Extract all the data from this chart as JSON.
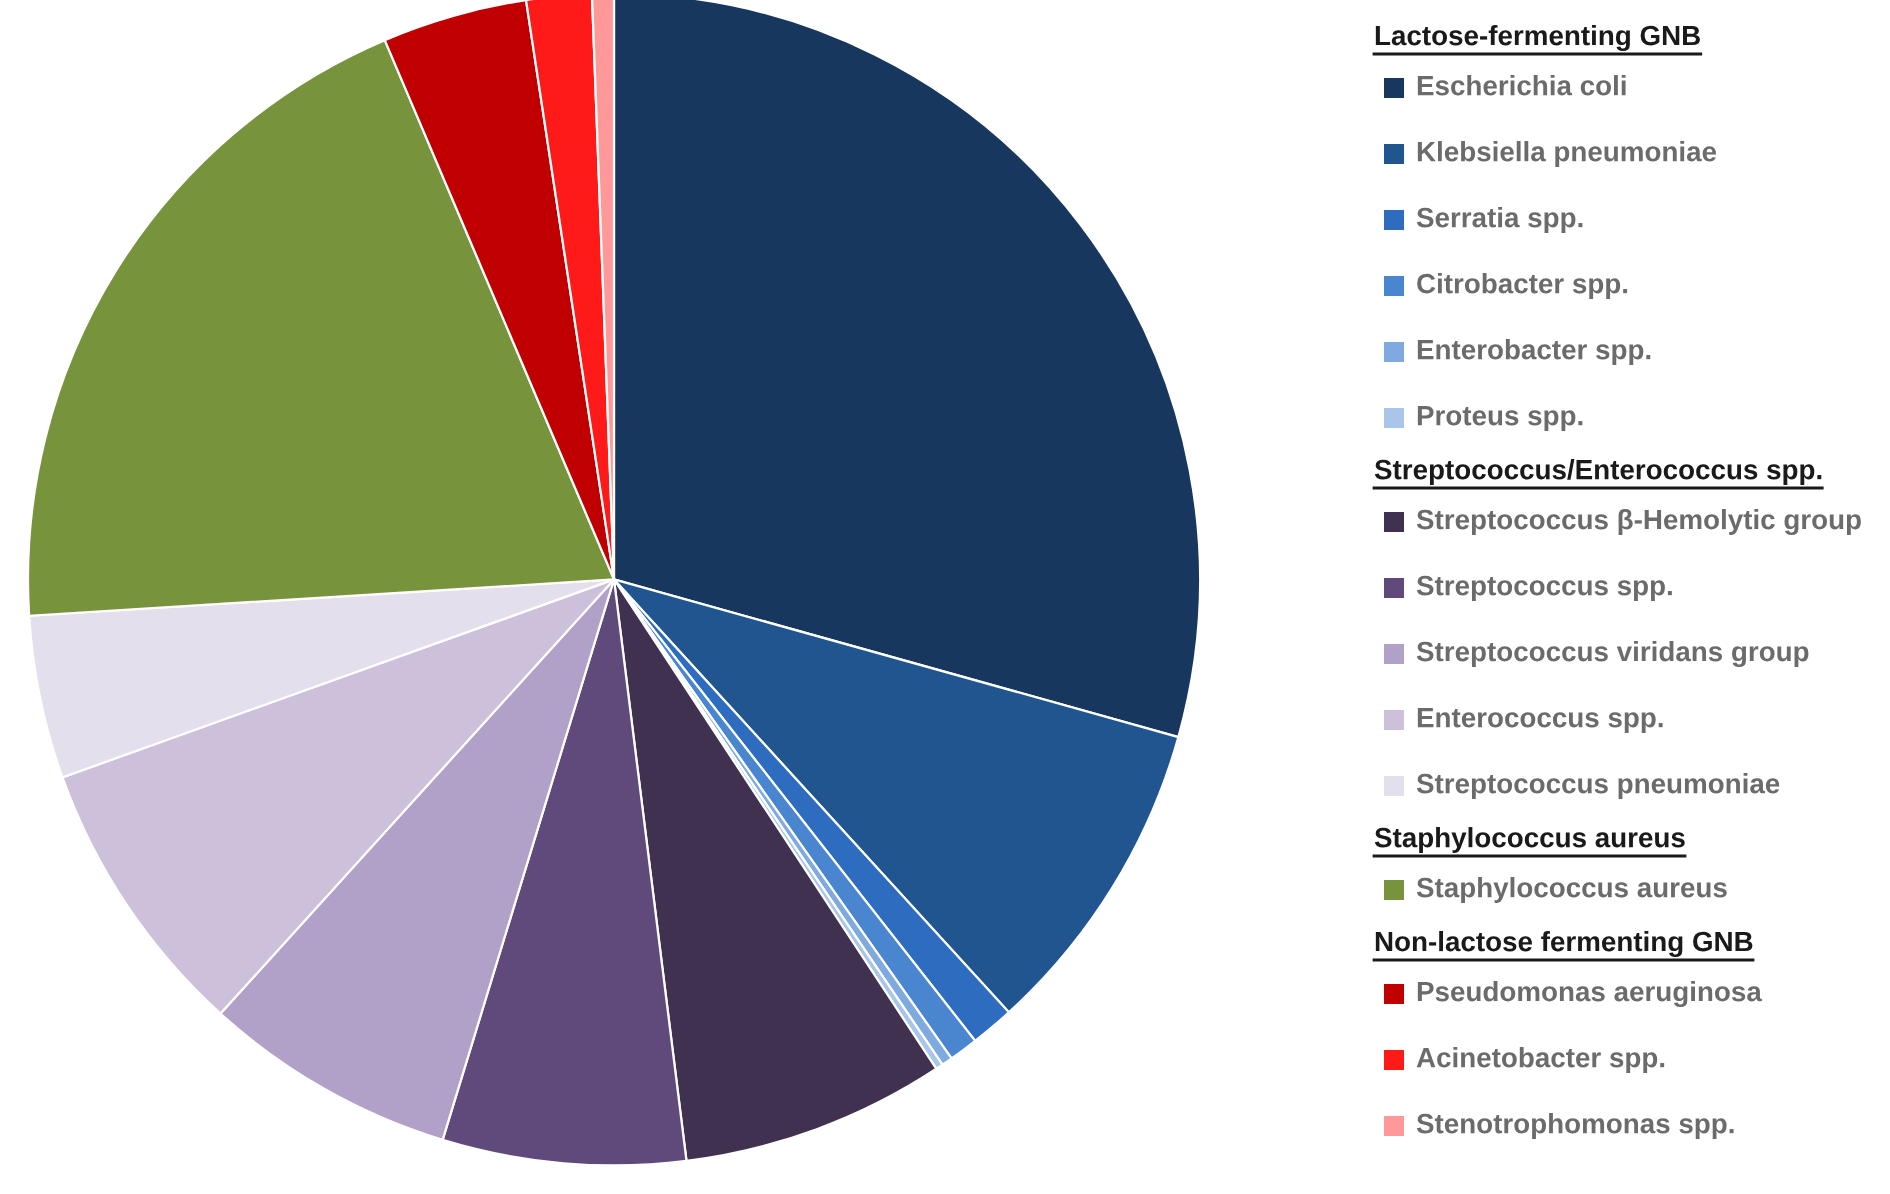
{
  "chart_data": {
    "type": "pie",
    "categories": [
      "Escherichia coli",
      "Klebsiella pneumoniae",
      "Serratia spp.",
      "Citrobacter spp.",
      "Enterobacter spp.",
      "Proteus spp.",
      "Streptococcus β-Hemolytic group",
      "Streptococcus spp.",
      "Streptococcus viridans group",
      "Enterococcus spp.",
      "Streptococcus pneumoniae",
      "Staphylococcus aureus",
      "Pseudomonas aeruginosa",
      "Acinetobacter spp.",
      "Stenotrophomonas spp."
    ],
    "values": [
      29.35,
      8.9,
      1.2,
      0.8,
      0.3,
      0.2,
      7.3,
      6.7,
      7.0,
      7.8,
      4.5,
      19.6,
      4.0,
      1.8,
      0.6
    ],
    "colors": [
      "#17375e",
      "#215590",
      "#2e6cc0",
      "#4a86d0",
      "#7eaadf",
      "#a9c6ea",
      "#403150",
      "#604a7b",
      "#b1a0c7",
      "#ccc0da",
      "#e4dfec",
      "#77933c",
      "#c00000",
      "#ff1a1a",
      "#ff9999"
    ],
    "legend": "right",
    "annotations": [
      {
        "text": "Lactose-fermenting GNB",
        "x": "Escherichia coli"
      },
      {
        "text": "Streptococcus/Enterococcus spp.",
        "x": "Streptococcus β-Hemolytic group"
      },
      {
        "text": "Staphylococcus aureus",
        "x": "Staphylococcus aureus"
      },
      {
        "text": "Non-lactose fermenting GNB",
        "x": "Pseudomonas aeruginosa"
      }
    ]
  }
}
